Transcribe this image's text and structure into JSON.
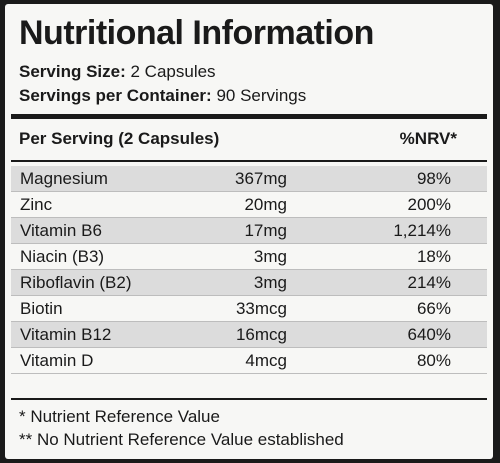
{
  "title": "Nutritional Information",
  "serving_size": {
    "label": "Serving Size:",
    "value": "2 Capsules"
  },
  "servings_per_container": {
    "label": "Servings per Container:",
    "value": "90 Servings"
  },
  "table": {
    "header_left": "Per Serving (2 Capsules)",
    "header_right": "%NRV*",
    "rows": [
      {
        "name": "Magnesium",
        "amount": "367mg",
        "nrv": "98%"
      },
      {
        "name": "Zinc",
        "amount": "20mg",
        "nrv": "200%"
      },
      {
        "name": "Vitamin B6",
        "amount": "17mg",
        "nrv": "1,214%"
      },
      {
        "name": "Niacin (B3)",
        "amount": "3mg",
        "nrv": "18%"
      },
      {
        "name": "Riboflavin (B2)",
        "amount": "3mg",
        "nrv": "214%"
      },
      {
        "name": "Biotin",
        "amount": "33mcg",
        "nrv": "66%"
      },
      {
        "name": "Vitamin B12",
        "amount": "16mcg",
        "nrv": "640%"
      },
      {
        "name": "Vitamin D",
        "amount": "4mcg",
        "nrv": "80%"
      }
    ]
  },
  "footnotes": [
    "* Nutrient Reference Value",
    "** No Nutrient Reference Value established"
  ]
}
